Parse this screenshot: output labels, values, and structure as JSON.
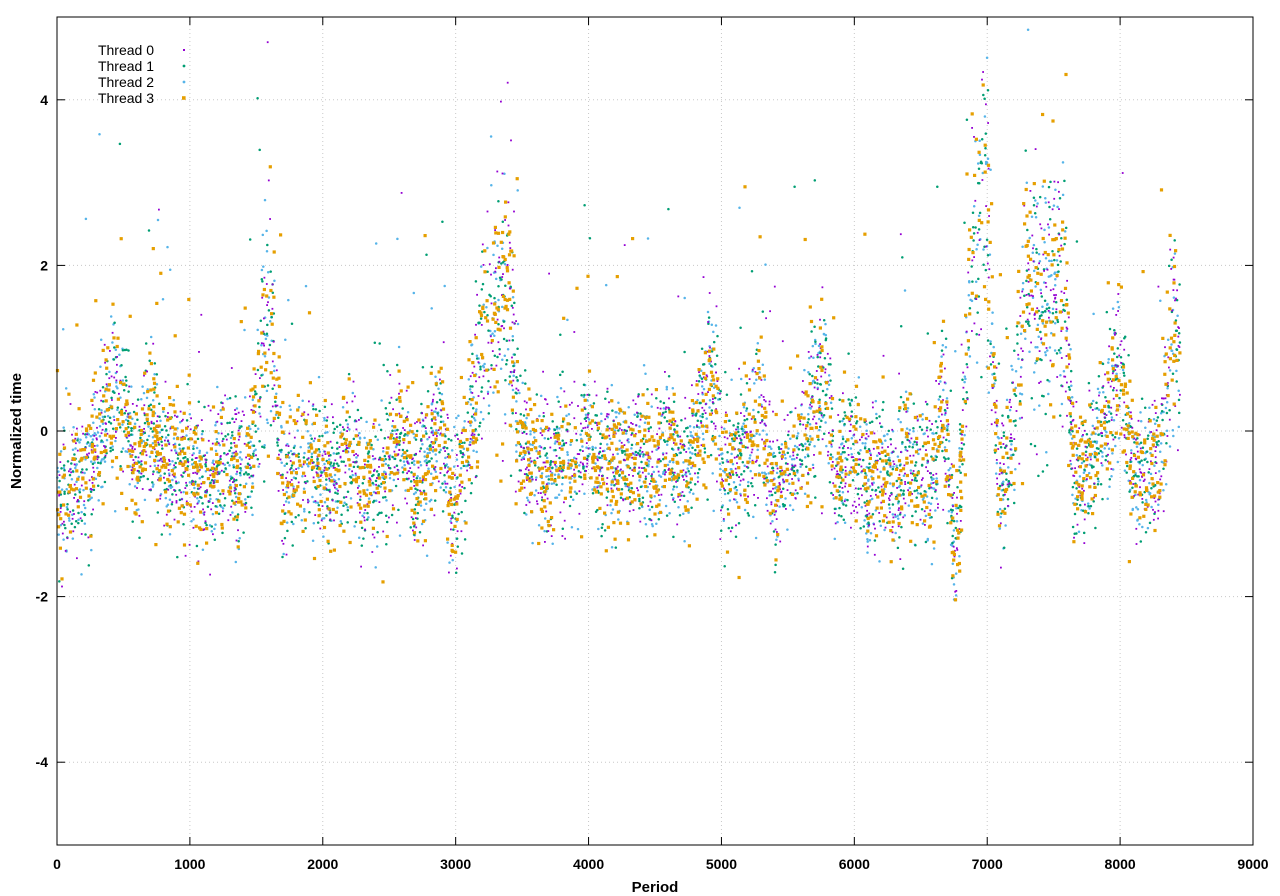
{
  "chart_data": {
    "type": "scatter",
    "title": "",
    "xlabel": "Period",
    "ylabel": "Normalized time",
    "xlim": [
      0,
      9000
    ],
    "ylim": [
      -5,
      5
    ],
    "xticks": [
      0,
      1000,
      2000,
      3000,
      4000,
      5000,
      6000,
      7000,
      8000,
      9000
    ],
    "yticks": [
      -4,
      -2,
      0,
      2,
      4
    ],
    "x_tick_labels": [
      "0",
      "1000",
      "2000",
      "3000",
      "4000",
      "5000",
      "6000",
      "7000",
      "8000",
      "9000"
    ],
    "y_tick_labels": [
      "-4",
      "-2",
      "0",
      "2",
      "4"
    ],
    "grid": true,
    "legend_position": "top-left",
    "x_range_of_points": [
      0,
      8450
    ],
    "series": [
      {
        "name": "Thread 0",
        "color": "#9400d3",
        "marker": "plus"
      },
      {
        "name": "Thread 1",
        "color": "#009e73",
        "marker": "dot"
      },
      {
        "name": "Thread 2",
        "color": "#56b4e9",
        "marker": "dot"
      },
      {
        "name": "Thread 3",
        "color": "#e69f00",
        "marker": "square"
      }
    ],
    "trend_profile": [
      [
        0,
        -0.9
      ],
      [
        100,
        -0.7
      ],
      [
        200,
        -0.6
      ],
      [
        300,
        -0.2
      ],
      [
        400,
        0.3
      ],
      [
        500,
        0.4
      ],
      [
        600,
        -0.4
      ],
      [
        700,
        0.1
      ],
      [
        800,
        -0.3
      ],
      [
        900,
        -0.5
      ],
      [
        1000,
        -0.4
      ],
      [
        1100,
        -0.6
      ],
      [
        1200,
        -0.5
      ],
      [
        1300,
        -0.3
      ],
      [
        1400,
        -0.6
      ],
      [
        1500,
        0.2
      ],
      [
        1550,
        1.2
      ],
      [
        1600,
        1.5
      ],
      [
        1650,
        0.6
      ],
      [
        1700,
        -0.8
      ],
      [
        1800,
        -0.5
      ],
      [
        1900,
        -0.3
      ],
      [
        2000,
        -0.6
      ],
      [
        2100,
        -0.7
      ],
      [
        2200,
        -0.3
      ],
      [
        2300,
        -0.7
      ],
      [
        2400,
        -0.6
      ],
      [
        2500,
        -0.4
      ],
      [
        2600,
        0.0
      ],
      [
        2700,
        -0.6
      ],
      [
        2800,
        -0.2
      ],
      [
        2900,
        0.0
      ],
      [
        2980,
        -1.0
      ],
      [
        3100,
        0.0
      ],
      [
        3200,
        1.0
      ],
      [
        3300,
        1.5
      ],
      [
        3400,
        1.8
      ],
      [
        3450,
        0.5
      ],
      [
        3500,
        -0.3
      ],
      [
        3600,
        -0.3
      ],
      [
        3700,
        -0.5
      ],
      [
        3800,
        -0.2
      ],
      [
        3900,
        -0.4
      ],
      [
        4000,
        0.0
      ],
      [
        4100,
        -0.5
      ],
      [
        4200,
        -0.2
      ],
      [
        4300,
        -0.5
      ],
      [
        4400,
        -0.3
      ],
      [
        4500,
        -0.5
      ],
      [
        4600,
        -0.1
      ],
      [
        4700,
        -0.6
      ],
      [
        4800,
        -0.2
      ],
      [
        4900,
        0.6
      ],
      [
        4980,
        0.4
      ],
      [
        5000,
        -0.7
      ],
      [
        5100,
        -0.3
      ],
      [
        5200,
        -0.2
      ],
      [
        5300,
        0.3
      ],
      [
        5400,
        -0.8
      ],
      [
        5500,
        -0.4
      ],
      [
        5600,
        -0.2
      ],
      [
        5700,
        0.3
      ],
      [
        5800,
        0.6
      ],
      [
        5850,
        -0.7
      ],
      [
        5900,
        -0.4
      ],
      [
        6000,
        -0.2
      ],
      [
        6100,
        -0.6
      ],
      [
        6200,
        -0.4
      ],
      [
        6300,
        -0.8
      ],
      [
        6400,
        -0.3
      ],
      [
        6500,
        -0.5
      ],
      [
        6600,
        -0.7
      ],
      [
        6650,
        0.5
      ],
      [
        6700,
        0.0
      ],
      [
        6760,
        -1.5
      ],
      [
        6800,
        -0.5
      ],
      [
        6900,
        2.5
      ],
      [
        7000,
        3.0
      ],
      [
        7050,
        0.5
      ],
      [
        7100,
        -0.8
      ],
      [
        7200,
        0.0
      ],
      [
        7300,
        2.0
      ],
      [
        7400,
        1.5
      ],
      [
        7500,
        1.8
      ],
      [
        7600,
        1.2
      ],
      [
        7650,
        -0.6
      ],
      [
        7700,
        -0.6
      ],
      [
        7800,
        -0.3
      ],
      [
        7900,
        0.2
      ],
      [
        8000,
        0.8
      ],
      [
        8100,
        -0.5
      ],
      [
        8200,
        -0.6
      ],
      [
        8300,
        -0.2
      ],
      [
        8400,
        1.2
      ],
      [
        8450,
        0.8
      ]
    ]
  }
}
